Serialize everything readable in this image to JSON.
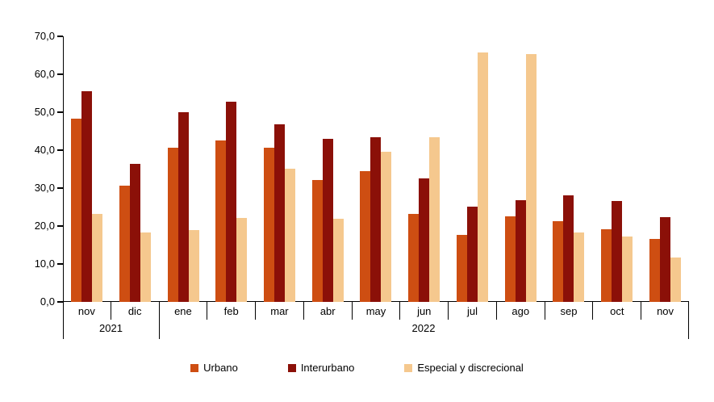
{
  "colors": {
    "urbano": "#CE4E12",
    "interurbano": "#8B1008",
    "especial": "#F5C88E",
    "axis": "#000000",
    "text": "#000000",
    "background": "#FFFFFF"
  },
  "y_axis": {
    "tick_labels": [
      "70,0",
      "60,0",
      "50,0",
      "40,0",
      "30,0",
      "20,0",
      "10,0",
      "0,0"
    ],
    "max": 70,
    "min": 0,
    "step": 10
  },
  "chart_data": {
    "type": "bar",
    "title": "",
    "xlabel": "",
    "ylabel": "",
    "ylim": [
      0,
      70
    ],
    "grid": false,
    "legend_position": "bottom",
    "categories": [
      "nov",
      "dic",
      "ene",
      "feb",
      "mar",
      "abr",
      "may",
      "jun",
      "jul",
      "ago",
      "sep",
      "oct",
      "nov"
    ],
    "year_groups": [
      {
        "label": "2021",
        "span": 2
      },
      {
        "label": "2022",
        "span": 11
      }
    ],
    "series": [
      {
        "name": "Urbano",
        "color": "#CE4E12",
        "values": [
          48.4,
          30.6,
          40.7,
          42.6,
          40.7,
          32.2,
          34.5,
          23.2,
          17.7,
          22.5,
          21.3,
          19.1,
          16.5
        ]
      },
      {
        "name": "Interurbano",
        "color": "#8B1008",
        "values": [
          55.6,
          36.3,
          49.9,
          52.8,
          46.9,
          42.9,
          43.4,
          32.5,
          25.1,
          26.8,
          28.0,
          26.5,
          22.4
        ]
      },
      {
        "name": "Especial y discrecional",
        "color": "#F5C88E",
        "values": [
          23.3,
          18.4,
          19.0,
          22.2,
          35.2,
          21.9,
          39.5,
          43.4,
          65.7,
          65.4,
          18.3,
          17.2,
          11.7
        ]
      }
    ]
  }
}
